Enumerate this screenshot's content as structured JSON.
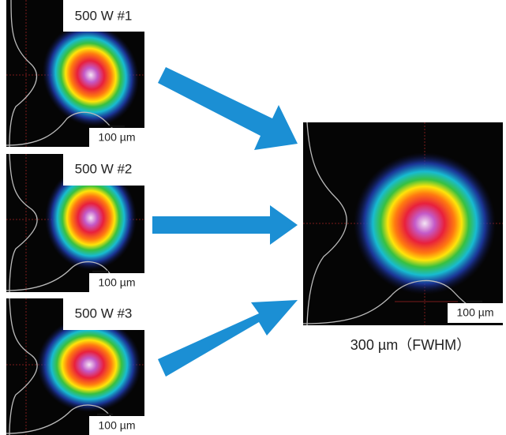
{
  "panels": [
    {
      "label": "500 W #1",
      "scale": "100 µm"
    },
    {
      "label": "500 W #2",
      "scale": "100 µm"
    },
    {
      "label": "500 W #3",
      "scale": "100 µm"
    }
  ],
  "result": {
    "scale": "100 µm",
    "caption": "300 µm（FWHM）"
  }
}
